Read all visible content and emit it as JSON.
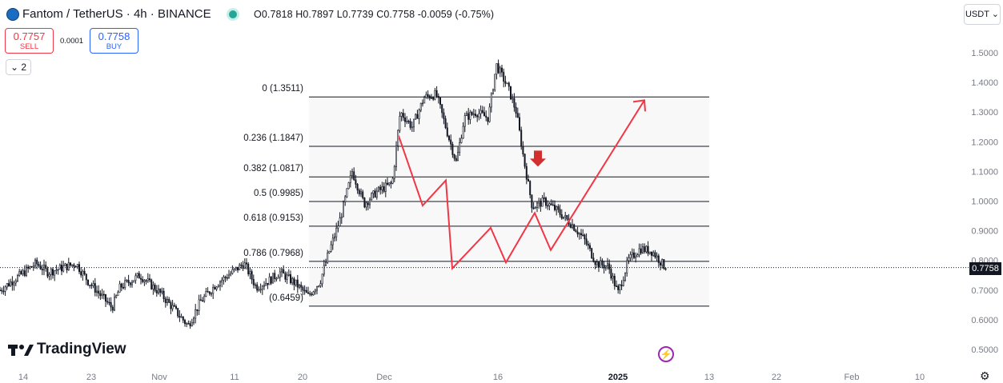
{
  "header": {
    "symbol": "Fantom / TetherUS · 4h · BINANCE",
    "ohlc": "O0.7818 H0.7897 L0.7739 C0.7758 -0.0059 (-0.75%)",
    "currency": "USDT ⌄"
  },
  "trade": {
    "sell_price": "0.7757",
    "sell_label": "SELL",
    "spread": "0.0001",
    "buy_price": "0.7758",
    "buy_label": "BUY",
    "indicator_toggle": "⌄ 2"
  },
  "brand": "TradingView",
  "current_price_label": "0.7758",
  "colors": {
    "up": "#131722",
    "arrow": "#f23645",
    "marker": "#d32f2f",
    "fib_line": "#131722",
    "fib_fill": "#f8f8f8"
  },
  "chart_data": {
    "type": "candlestick",
    "y_axis": {
      "ticks": [
        "1.5000",
        "1.4000",
        "1.3000",
        "1.2000",
        "1.1000",
        "1.0000",
        "0.9000",
        "0.8000",
        "0.7000",
        "0.6000",
        "0.5000"
      ],
      "range": [
        0.48,
        1.62
      ]
    },
    "x_axis": {
      "ticks": [
        "14",
        "23",
        "Nov",
        "11",
        "20",
        "Dec",
        "16",
        "2025",
        "13",
        "22",
        "Feb",
        "10"
      ]
    },
    "fib_levels": [
      {
        "ratio": "0",
        "price": 1.3511,
        "label": "0 (1.3511)"
      },
      {
        "ratio": "0.236",
        "price": 1.1847,
        "label": "0.236 (1.1847)"
      },
      {
        "ratio": "0.382",
        "price": 1.0817,
        "label": "0.382 (1.0817)"
      },
      {
        "ratio": "0.5",
        "price": 0.9985,
        "label": "0.5 (0.9985)"
      },
      {
        "ratio": "0.618",
        "price": 0.9153,
        "label": "0.618 (0.9153)"
      },
      {
        "ratio": "0.786",
        "price": 0.7968,
        "label": "0.786 (0.7968)"
      },
      {
        "ratio": "1",
        "price": 0.6459,
        "label": "(0.6459)"
      }
    ],
    "price_path": [
      [
        0,
        0.7
      ],
      [
        20,
        0.74
      ],
      [
        45,
        0.79
      ],
      [
        60,
        0.76
      ],
      [
        95,
        0.79
      ],
      [
        110,
        0.73
      ],
      [
        140,
        0.64
      ],
      [
        150,
        0.71
      ],
      [
        175,
        0.75
      ],
      [
        200,
        0.69
      ],
      [
        235,
        0.58
      ],
      [
        250,
        0.66
      ],
      [
        270,
        0.72
      ],
      [
        290,
        0.76
      ],
      [
        305,
        0.79
      ],
      [
        320,
        0.71
      ],
      [
        335,
        0.73
      ],
      [
        350,
        0.76
      ],
      [
        370,
        0.72
      ],
      [
        385,
        0.68
      ],
      [
        400,
        0.73
      ],
      [
        410,
        0.82
      ],
      [
        425,
        0.94
      ],
      [
        440,
        1.1
      ],
      [
        455,
        0.99
      ],
      [
        470,
        1.03
      ],
      [
        490,
        1.06
      ],
      [
        500,
        1.3
      ],
      [
        515,
        1.25
      ],
      [
        530,
        1.35
      ],
      [
        545,
        1.36
      ],
      [
        560,
        1.22
      ],
      [
        570,
        1.13
      ],
      [
        580,
        1.28
      ],
      [
        595,
        1.3
      ],
      [
        610,
        1.28
      ],
      [
        620,
        1.46
      ],
      [
        635,
        1.38
      ],
      [
        645,
        1.3
      ],
      [
        655,
        1.13
      ],
      [
        665,
        0.98
      ],
      [
        680,
        1.0
      ],
      [
        695,
        0.97
      ],
      [
        715,
        0.92
      ],
      [
        730,
        0.87
      ],
      [
        745,
        0.79
      ],
      [
        760,
        0.78
      ],
      [
        772,
        0.69
      ],
      [
        785,
        0.8
      ],
      [
        800,
        0.84
      ],
      [
        815,
        0.83
      ],
      [
        830,
        0.78
      ]
    ],
    "arrow_path": [
      [
        498,
        1.22
      ],
      [
        528,
        0.985
      ],
      [
        557,
        1.07
      ],
      [
        565,
        0.773
      ],
      [
        613,
        0.91
      ],
      [
        632,
        0.793
      ],
      [
        668,
        0.96
      ],
      [
        688,
        0.835
      ],
      [
        805,
        1.34
      ]
    ],
    "down_marker_price": 1.1
  }
}
